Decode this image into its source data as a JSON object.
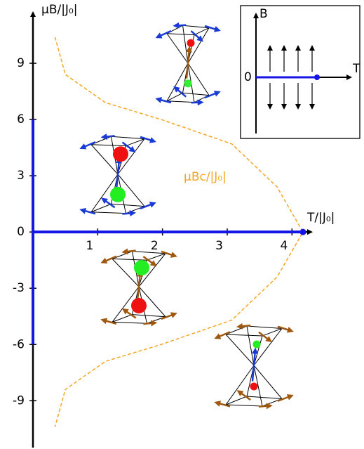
{
  "chart_data": {
    "type": "line",
    "x_label": "T/|J₀|",
    "y_label": "μB/|J₀|",
    "xlim": [
      0,
      4.3
    ],
    "ylim": [
      -11.5,
      11.7
    ],
    "xticks": [
      1,
      2,
      3,
      4
    ],
    "yticks": [
      -9,
      -6,
      -3,
      0,
      3,
      6,
      9
    ],
    "series": [
      {
        "name": "μBc/|J₀|",
        "color": "#f5a623",
        "dashed": true,
        "x": [
          0.34,
          0.5,
          1.12,
          1.98,
          3.07,
          3.77,
          4.17,
          3.77,
          3.07,
          1.98,
          1.12,
          0.5,
          0.34
        ],
        "values": [
          10.4,
          8.4,
          6.9,
          6.0,
          4.7,
          2.4,
          0,
          -2.4,
          -4.7,
          -6.0,
          -6.9,
          -8.4,
          -10.4
        ]
      },
      {
        "color": "#1515e6",
        "x": [
          0,
          4.17
        ],
        "values": [
          0,
          0
        ]
      },
      {
        "color": "#1515e6",
        "x": [
          0,
          0
        ],
        "values": [
          -6,
          6
        ]
      }
    ],
    "inset": {
      "y_label": "B",
      "x_label": "T",
      "origin_label": "0"
    }
  }
}
